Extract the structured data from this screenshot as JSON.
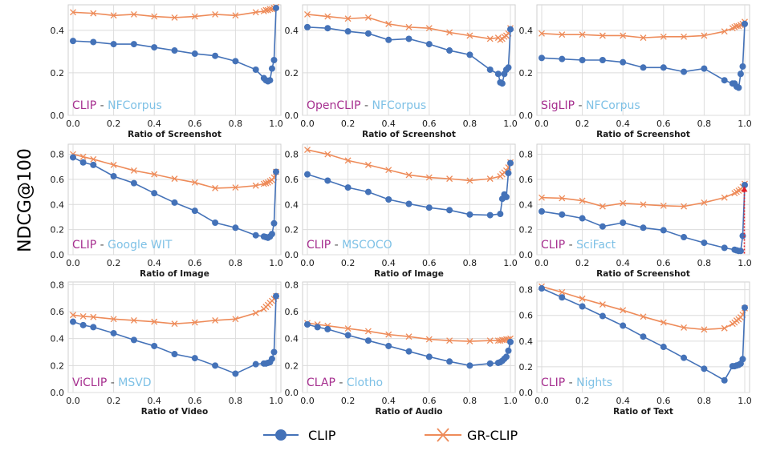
{
  "colors": {
    "clip_series": "#4472b8",
    "grclip_series": "#ee8b59",
    "model_label": "#a62f8f",
    "dataset_label": "#7ec1e6",
    "grid": "#dcdcdc",
    "panel_bg": "#ffffff",
    "arrow": "#e0202a"
  },
  "figure": {
    "ylabel": "NDCG@100",
    "legend": [
      {
        "name": "CLIP",
        "marker": "circle"
      },
      {
        "name": "GR-CLIP",
        "marker": "x"
      }
    ]
  },
  "chart_data": [
    {
      "type": "line",
      "model": "CLIP",
      "separator": " - ",
      "dataset": "NFCorpus",
      "xlabel": "Ratio of Screenshot",
      "xlim": [
        0,
        1
      ],
      "ylim": [
        0,
        0.52
      ],
      "xticks": [
        0.0,
        0.2,
        0.4,
        0.6,
        0.8,
        1.0
      ],
      "yticks": [
        0.0,
        0.2,
        0.4
      ],
      "x": [
        0.0,
        0.1,
        0.2,
        0.3,
        0.4,
        0.5,
        0.6,
        0.7,
        0.8,
        0.9,
        0.94,
        0.95,
        0.96,
        0.97,
        0.98,
        0.99,
        1.0
      ],
      "series": [
        {
          "name": "CLIP",
          "values": [
            0.35,
            0.345,
            0.335,
            0.335,
            0.32,
            0.305,
            0.29,
            0.28,
            0.255,
            0.215,
            0.175,
            0.165,
            0.16,
            0.165,
            0.22,
            0.26,
            0.505
          ]
        },
        {
          "name": "GR-CLIP",
          "values": [
            0.485,
            0.48,
            0.47,
            0.475,
            0.465,
            0.46,
            0.465,
            0.475,
            0.47,
            0.485,
            0.49,
            0.495,
            0.495,
            0.5,
            0.5,
            0.505,
            0.51
          ]
        }
      ]
    },
    {
      "type": "line",
      "model": "OpenCLIP",
      "separator": " - ",
      "dataset": "NFCorpus",
      "xlabel": "Ratio of Screenshot",
      "xlim": [
        0,
        1
      ],
      "ylim": [
        0,
        0.52
      ],
      "xticks": [
        0.0,
        0.2,
        0.4,
        0.6,
        0.8,
        1.0
      ],
      "yticks": [
        0.0,
        0.2,
        0.4
      ],
      "x": [
        0.0,
        0.1,
        0.2,
        0.3,
        0.4,
        0.5,
        0.6,
        0.7,
        0.8,
        0.9,
        0.94,
        0.95,
        0.96,
        0.97,
        0.98,
        0.99,
        1.0
      ],
      "series": [
        {
          "name": "CLIP",
          "values": [
            0.415,
            0.41,
            0.395,
            0.385,
            0.355,
            0.36,
            0.335,
            0.305,
            0.285,
            0.215,
            0.195,
            0.155,
            0.15,
            0.195,
            0.215,
            0.225,
            0.405
          ]
        },
        {
          "name": "GR-CLIP",
          "values": [
            0.475,
            0.465,
            0.455,
            0.46,
            0.43,
            0.415,
            0.41,
            0.39,
            0.375,
            0.36,
            0.365,
            0.355,
            0.36,
            0.37,
            0.375,
            0.385,
            0.41
          ]
        }
      ]
    },
    {
      "type": "line",
      "model": "SigLIP",
      "separator": " - ",
      "dataset": "NFCorpus",
      "xlabel": "Ratio of Screenshot",
      "xlim": [
        0,
        1
      ],
      "ylim": [
        0,
        0.52
      ],
      "xticks": [
        0.0,
        0.2,
        0.4,
        0.6,
        0.8,
        1.0
      ],
      "yticks": [
        0.0,
        0.2,
        0.4
      ],
      "x": [
        0.0,
        0.1,
        0.2,
        0.3,
        0.4,
        0.5,
        0.6,
        0.7,
        0.8,
        0.9,
        0.94,
        0.95,
        0.96,
        0.97,
        0.98,
        0.99,
        1.0
      ],
      "series": [
        {
          "name": "CLIP",
          "values": [
            0.27,
            0.265,
            0.26,
            0.26,
            0.25,
            0.225,
            0.225,
            0.205,
            0.22,
            0.165,
            0.15,
            0.15,
            0.135,
            0.13,
            0.195,
            0.23,
            0.43
          ]
        },
        {
          "name": "GR-CLIP",
          "values": [
            0.385,
            0.38,
            0.38,
            0.375,
            0.375,
            0.365,
            0.37,
            0.37,
            0.375,
            0.395,
            0.41,
            0.415,
            0.42,
            0.42,
            0.425,
            0.43,
            0.44
          ]
        }
      ]
    },
    {
      "type": "line",
      "model": "CLIP",
      "separator": " - ",
      "dataset": "Google WIT",
      "xlabel": "Ratio of Image",
      "xlim": [
        0,
        1
      ],
      "ylim": [
        0,
        0.88
      ],
      "xticks": [
        0.0,
        0.2,
        0.4,
        0.6,
        0.8,
        1.0
      ],
      "yticks": [
        0.0,
        0.2,
        0.4,
        0.6,
        0.8
      ],
      "x": [
        0.0,
        0.05,
        0.1,
        0.2,
        0.3,
        0.4,
        0.5,
        0.6,
        0.7,
        0.8,
        0.9,
        0.94,
        0.95,
        0.96,
        0.97,
        0.98,
        0.99,
        1.0
      ],
      "series": [
        {
          "name": "CLIP",
          "values": [
            0.775,
            0.735,
            0.715,
            0.625,
            0.57,
            0.49,
            0.415,
            0.35,
            0.255,
            0.215,
            0.155,
            0.145,
            0.14,
            0.135,
            0.145,
            0.165,
            0.25,
            0.66
          ]
        },
        {
          "name": "GR-CLIP",
          "values": [
            0.8,
            0.78,
            0.76,
            0.715,
            0.67,
            0.64,
            0.605,
            0.575,
            0.53,
            0.535,
            0.55,
            0.565,
            0.57,
            0.575,
            0.585,
            0.595,
            0.615,
            0.66
          ]
        }
      ]
    },
    {
      "type": "line",
      "model": "CLIP",
      "separator": " - ",
      "dataset": "MSCOCO",
      "xlabel": "Ratio of Image",
      "xlim": [
        0,
        1
      ],
      "ylim": [
        0,
        0.88
      ],
      "xticks": [
        0.0,
        0.2,
        0.4,
        0.6,
        0.8,
        1.0
      ],
      "yticks": [
        0.0,
        0.2,
        0.4,
        0.6,
        0.8
      ],
      "x": [
        0.0,
        0.1,
        0.2,
        0.3,
        0.4,
        0.5,
        0.6,
        0.7,
        0.8,
        0.9,
        0.95,
        0.96,
        0.97,
        0.98,
        0.99,
        1.0
      ],
      "series": [
        {
          "name": "CLIP",
          "values": [
            0.64,
            0.59,
            0.535,
            0.5,
            0.44,
            0.405,
            0.375,
            0.355,
            0.32,
            0.315,
            0.325,
            0.445,
            0.48,
            0.46,
            0.65,
            0.73
          ]
        },
        {
          "name": "GR-CLIP",
          "values": [
            0.835,
            0.8,
            0.75,
            0.715,
            0.675,
            0.635,
            0.615,
            0.605,
            0.59,
            0.605,
            0.625,
            0.64,
            0.655,
            0.67,
            0.695,
            0.735
          ]
        }
      ]
    },
    {
      "type": "line",
      "model": "CLIP",
      "separator": " - ",
      "dataset": "SciFact",
      "xlabel": "Ratio of Screenshot",
      "xlim": [
        0,
        1
      ],
      "ylim": [
        0,
        0.88
      ],
      "xticks": [
        0.0,
        0.2,
        0.4,
        0.6,
        0.8,
        1.0
      ],
      "yticks": [
        0.0,
        0.2,
        0.4,
        0.6,
        0.8
      ],
      "x": [
        0.0,
        0.1,
        0.2,
        0.3,
        0.4,
        0.5,
        0.6,
        0.7,
        0.8,
        0.9,
        0.95,
        0.96,
        0.97,
        0.98,
        0.99,
        1.0
      ],
      "series": [
        {
          "name": "CLIP",
          "values": [
            0.345,
            0.32,
            0.29,
            0.225,
            0.255,
            0.215,
            0.195,
            0.14,
            0.095,
            0.055,
            0.04,
            0.035,
            0.03,
            0.03,
            0.15,
            0.555
          ]
        },
        {
          "name": "GR-CLIP",
          "values": [
            0.455,
            0.45,
            0.43,
            0.385,
            0.41,
            0.4,
            0.39,
            0.385,
            0.415,
            0.455,
            0.49,
            0.5,
            0.51,
            0.52,
            0.54,
            0.565
          ]
        }
      ]
    },
    {
      "type": "line",
      "model": "ViCLIP",
      "separator": " - ",
      "dataset": "MSVD",
      "xlabel": "Ratio of Video",
      "xlim": [
        0,
        1
      ],
      "ylim": [
        0,
        0.82
      ],
      "xticks": [
        0.0,
        0.2,
        0.4,
        0.6,
        0.8,
        1.0
      ],
      "yticks": [
        0.0,
        0.2,
        0.4,
        0.6,
        0.8
      ],
      "x": [
        0.0,
        0.05,
        0.1,
        0.2,
        0.3,
        0.4,
        0.5,
        0.6,
        0.7,
        0.8,
        0.9,
        0.94,
        0.95,
        0.96,
        0.97,
        0.98,
        0.99,
        1.0
      ],
      "series": [
        {
          "name": "CLIP",
          "values": [
            0.525,
            0.5,
            0.485,
            0.44,
            0.39,
            0.345,
            0.285,
            0.255,
            0.2,
            0.14,
            0.21,
            0.215,
            0.215,
            0.22,
            0.225,
            0.25,
            0.3,
            0.715
          ]
        },
        {
          "name": "GR-CLIP",
          "values": [
            0.575,
            0.565,
            0.56,
            0.545,
            0.535,
            0.525,
            0.51,
            0.52,
            0.535,
            0.545,
            0.59,
            0.62,
            0.635,
            0.65,
            0.665,
            0.68,
            0.695,
            0.715
          ]
        }
      ]
    },
    {
      "type": "line",
      "model": "CLAP",
      "separator": " - ",
      "dataset": "Clotho",
      "xlabel": "Ratio of Audio",
      "xlim": [
        0,
        1
      ],
      "ylim": [
        0,
        0.82
      ],
      "xticks": [
        0.0,
        0.2,
        0.4,
        0.6,
        0.8,
        1.0
      ],
      "yticks": [
        0.0,
        0.2,
        0.4,
        0.6,
        0.8
      ],
      "x": [
        0.0,
        0.05,
        0.1,
        0.2,
        0.3,
        0.4,
        0.5,
        0.6,
        0.7,
        0.8,
        0.9,
        0.94,
        0.95,
        0.96,
        0.97,
        0.98,
        0.99,
        1.0
      ],
      "series": [
        {
          "name": "CLIP",
          "values": [
            0.505,
            0.485,
            0.47,
            0.425,
            0.385,
            0.345,
            0.305,
            0.265,
            0.23,
            0.2,
            0.215,
            0.22,
            0.225,
            0.235,
            0.25,
            0.265,
            0.31,
            0.375
          ]
        },
        {
          "name": "GR-CLIP",
          "values": [
            0.515,
            0.505,
            0.495,
            0.475,
            0.455,
            0.43,
            0.415,
            0.395,
            0.385,
            0.38,
            0.385,
            0.385,
            0.385,
            0.39,
            0.39,
            0.395,
            0.395,
            0.4
          ]
        }
      ]
    },
    {
      "type": "line",
      "model": "CLIP",
      "separator": " - ",
      "dataset": "Nights",
      "xlabel": "Ratio of Text",
      "xlim": [
        0,
        1
      ],
      "ylim": [
        0,
        0.86
      ],
      "xticks": [
        0.0,
        0.2,
        0.4,
        0.6,
        0.8,
        1.0
      ],
      "yticks": [
        0.0,
        0.2,
        0.4,
        0.6,
        0.8
      ],
      "x": [
        0.0,
        0.1,
        0.2,
        0.3,
        0.4,
        0.5,
        0.6,
        0.7,
        0.8,
        0.9,
        0.94,
        0.95,
        0.96,
        0.97,
        0.98,
        0.99,
        1.0
      ],
      "series": [
        {
          "name": "CLIP",
          "values": [
            0.81,
            0.74,
            0.67,
            0.595,
            0.52,
            0.435,
            0.355,
            0.27,
            0.185,
            0.095,
            0.205,
            0.205,
            0.21,
            0.215,
            0.225,
            0.26,
            0.66
          ]
        },
        {
          "name": "GR-CLIP",
          "values": [
            0.825,
            0.78,
            0.73,
            0.685,
            0.64,
            0.59,
            0.545,
            0.505,
            0.49,
            0.5,
            0.535,
            0.545,
            0.56,
            0.57,
            0.585,
            0.605,
            0.655
          ]
        }
      ]
    }
  ]
}
